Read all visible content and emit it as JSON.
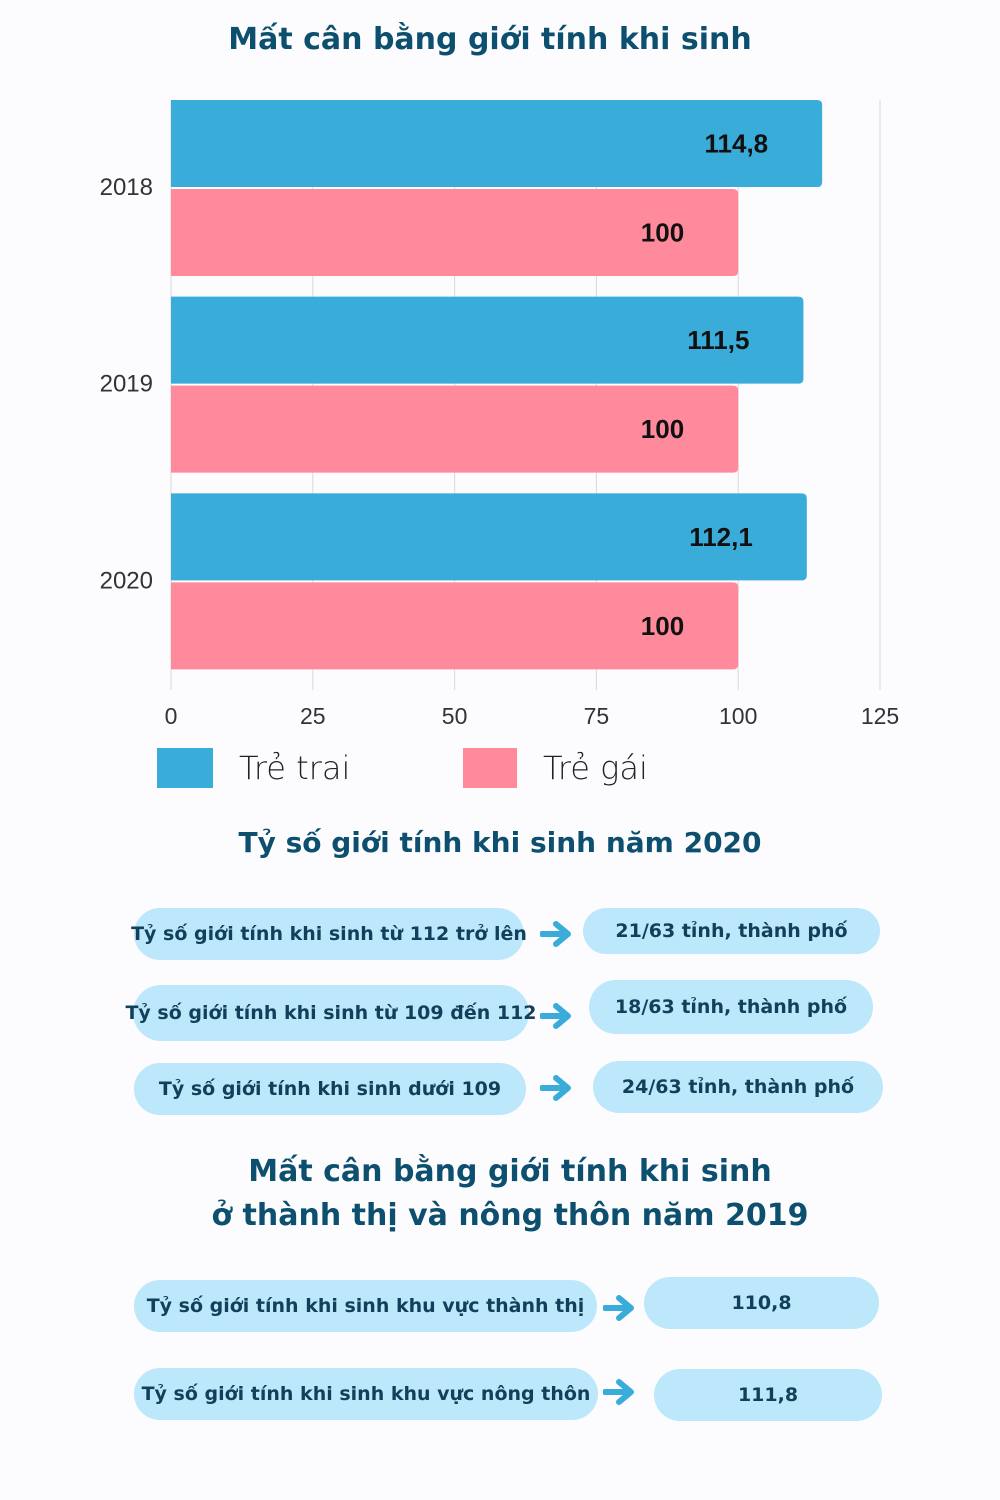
{
  "title": "Mất cân bằng giới tính khi sinh",
  "chart_data": {
    "type": "bar",
    "orientation": "horizontal",
    "title": "Mất cân bằng giới tính khi sinh",
    "categories": [
      "2018",
      "2019",
      "2020"
    ],
    "series": [
      {
        "name": "Trẻ trai",
        "color": "#3aacda",
        "values": [
          114.8,
          111.5,
          112.1
        ],
        "labels": [
          "114,8",
          "111,5",
          "112,1"
        ]
      },
      {
        "name": "Trẻ gái",
        "color": "#ff8a9c",
        "values": [
          100,
          100,
          100
        ],
        "labels": [
          "100",
          "100",
          "100"
        ]
      }
    ],
    "xlim": [
      0,
      125
    ],
    "xticks": [
      "0",
      "25",
      "50",
      "75",
      "100",
      "125"
    ],
    "xtick_values": [
      0,
      25,
      50,
      75,
      100,
      125
    ],
    "grid": true,
    "legend_placement": "bottom-left"
  },
  "legend": [
    {
      "label": "Trẻ trai",
      "color": "#3aacda"
    },
    {
      "label": "Trẻ gái",
      "color": "#ff8a9c"
    }
  ],
  "section2": {
    "title": "Tỷ số giới tính khi sinh năm 2020",
    "rows": [
      {
        "label": "Tỷ số giới tính khi sinh từ 112 trở lên",
        "value": "21/63 tỉnh, thành phố"
      },
      {
        "label": "Tỷ số giới tính khi sinh từ 109 đến 112",
        "value": "18/63 tỉnh, thành phố"
      },
      {
        "label": "Tỷ số giới tính khi sinh dưới 109",
        "value": "24/63 tỉnh, thành phố"
      }
    ]
  },
  "section3": {
    "title_line1": "Mất cân bằng giới tính khi sinh",
    "title_line2": "ở thành thị và nông thôn năm 2019",
    "rows": [
      {
        "label": "Tỷ số giới tính khi sinh khu vực thành thị",
        "value": "110,8"
      },
      {
        "label": "Tỷ số giới tính khi sinh khu vực nông thôn",
        "value": "111,8"
      }
    ]
  },
  "colors": {
    "title": "#0d4f6e",
    "pill": "#bde7fa",
    "arrow": "#3aacda"
  }
}
